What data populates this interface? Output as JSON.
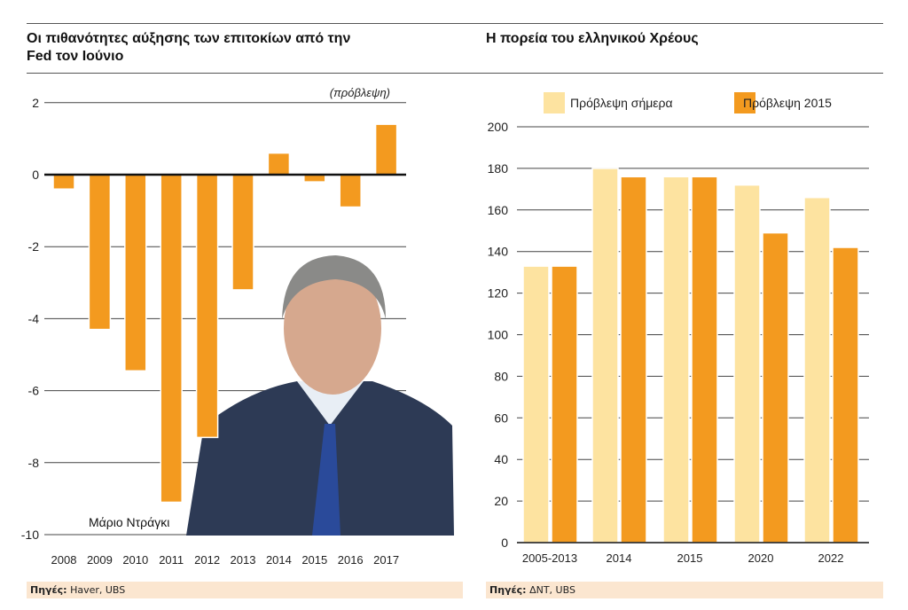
{
  "colors": {
    "bar": "#f39a1f",
    "light": "#fde3a0",
    "grid": "#333"
  },
  "chart_data": [
    {
      "type": "bar",
      "title": "Οι πιθανότητες αύξησης των επιτοκίων από την Fed τον Ιούνιο",
      "categories": [
        "2008",
        "2009",
        "2010",
        "2011",
        "2012",
        "2013",
        "2014",
        "2015",
        "2016",
        "2017"
      ],
      "values": [
        -0.4,
        -4.3,
        -5.45,
        -9.1,
        -7.3,
        -3.2,
        0.6,
        -0.2,
        -0.9,
        1.4
      ],
      "ylim": [
        -10,
        2
      ],
      "yticks": [
        "2",
        "0",
        "-2",
        "-4",
        "-6",
        "-8",
        "-10"
      ],
      "grid": true,
      "annotation": "(πρόβλεψη)",
      "photo_caption": "Μάριο Ντράγκι",
      "source_label": "Πηγές:",
      "source": "Haver, UBS"
    },
    {
      "type": "bar",
      "title": "Η πορεία του ελληνικού Χρέους",
      "categories": [
        "2005-2013",
        "2014",
        "2015",
        "2020",
        "2022"
      ],
      "series": [
        {
          "name": "Πρόβλεψη σήμερα",
          "values": [
            133,
            180,
            176,
            172,
            166
          ]
        },
        {
          "name": "Πρόβλεψη 2015",
          "values": [
            133,
            176,
            176,
            149,
            142
          ]
        }
      ],
      "ylim": [
        0,
        200
      ],
      "yticks": [
        "200",
        "180",
        "160",
        "140",
        "120",
        "100",
        "80",
        "60",
        "40",
        "20",
        "0"
      ],
      "grid": true,
      "legend": "top",
      "source_label": "Πηγές:",
      "source": "ΔΝΤ, UBS"
    }
  ]
}
